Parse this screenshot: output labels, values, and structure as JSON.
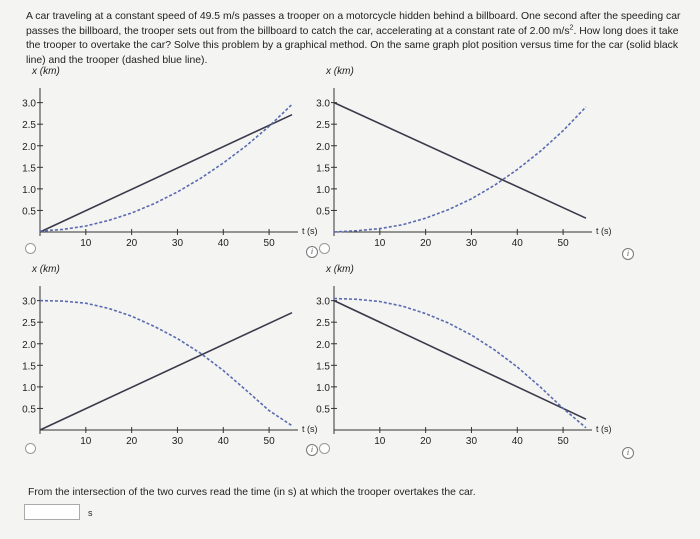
{
  "problem_text_1": "A car traveling at a constant speed of 49.5 m/s passes a trooper on a motorcycle hidden behind a billboard. One second after the speeding car passes the billboard, the trooper sets out from the billboard to catch the car, accelerating at a constant rate of",
  "problem_text_2": "2.00 m/s",
  "problem_text_sup": "2",
  "problem_text_3": ". How long does it take the trooper to overtake the car? Solve this problem by a graphical method. On the same graph plot position versus time for the car (solid black line) and the trooper (dashed blue line).",
  "question": "From the intersection of the two curves read the time (in s) at which the trooper overtakes the car.",
  "answer": {
    "value": "",
    "unit": "s"
  },
  "colors": {
    "car": "#3a3a4a",
    "trooper": "#5a6ab0",
    "axis": "#333"
  },
  "icons": {
    "radio": "radio-button",
    "info": "info-icon"
  },
  "info_glyph": "i",
  "chart_data": [
    {
      "type": "line",
      "option": 1,
      "ylabel": "x (km)",
      "xlabel": "t (s)",
      "xticks": [
        "10",
        "20",
        "30",
        "40",
        "50"
      ],
      "yticks": [
        "0.5",
        "1.0",
        "1.5",
        "2.0",
        "2.5",
        "3.0"
      ],
      "xlim": [
        0,
        55
      ],
      "ylim": [
        0,
        3.2
      ],
      "series": [
        {
          "style": "solid",
          "x": [
            0,
            55
          ],
          "y": [
            0,
            2.72
          ]
        },
        {
          "style": "dashed",
          "x": [
            0,
            5,
            10,
            15,
            20,
            25,
            30,
            35,
            40,
            45,
            50,
            55
          ],
          "y": [
            0.02,
            0.06,
            0.14,
            0.27,
            0.44,
            0.66,
            0.93,
            1.24,
            1.6,
            2.0,
            2.45,
            2.96
          ]
        }
      ]
    },
    {
      "type": "line",
      "option": 2,
      "ylabel": "x (km)",
      "xlabel": "t (s)",
      "xticks": [
        "10",
        "20",
        "30",
        "40",
        "50"
      ],
      "yticks": [
        "0.5",
        "1.0",
        "1.5",
        "2.0",
        "2.5",
        "3.0"
      ],
      "xlim": [
        0,
        55
      ],
      "ylim": [
        0,
        3.2
      ],
      "series": [
        {
          "style": "solid",
          "x": [
            0,
            55
          ],
          "y": [
            3.0,
            0.32
          ]
        },
        {
          "style": "dashed",
          "x": [
            0,
            5,
            10,
            15,
            20,
            25,
            30,
            35,
            40,
            45,
            50,
            55
          ],
          "y": [
            0.0,
            0.03,
            0.08,
            0.17,
            0.32,
            0.52,
            0.77,
            1.08,
            1.45,
            1.87,
            2.35,
            2.9
          ]
        }
      ]
    },
    {
      "type": "line",
      "option": 3,
      "ylabel": "x (km)",
      "xlabel": "t (s)",
      "xticks": [
        "10",
        "20",
        "30",
        "40",
        "50"
      ],
      "yticks": [
        "0.5",
        "1.0",
        "1.5",
        "2.0",
        "2.5",
        "3.0"
      ],
      "xlim": [
        0,
        55
      ],
      "ylim": [
        0,
        3.2
      ],
      "series": [
        {
          "style": "solid",
          "x": [
            0,
            55
          ],
          "y": [
            0,
            2.72
          ]
        },
        {
          "style": "dashed",
          "x": [
            0,
            5,
            10,
            15,
            20,
            25,
            30,
            35,
            40,
            45,
            50,
            55
          ],
          "y": [
            3.0,
            2.99,
            2.94,
            2.82,
            2.64,
            2.4,
            2.12,
            1.78,
            1.38,
            0.92,
            0.45,
            0.1
          ]
        }
      ]
    },
    {
      "type": "line",
      "option": 4,
      "ylabel": "x (km)",
      "xlabel": "t (s)",
      "xticks": [
        "10",
        "20",
        "30",
        "40",
        "50"
      ],
      "yticks": [
        "0.5",
        "1.0",
        "1.5",
        "2.0",
        "2.5",
        "3.0"
      ],
      "xlim": [
        0,
        55
      ],
      "ylim": [
        0,
        3.2
      ],
      "series": [
        {
          "style": "solid",
          "x": [
            0,
            55
          ],
          "y": [
            3.0,
            0.25
          ]
        },
        {
          "style": "dashed",
          "x": [
            0,
            5,
            10,
            15,
            20,
            25,
            30,
            35,
            40,
            45,
            50,
            55
          ],
          "y": [
            3.05,
            3.03,
            2.98,
            2.87,
            2.7,
            2.48,
            2.2,
            1.86,
            1.46,
            1.0,
            0.5,
            0.05
          ]
        }
      ]
    }
  ]
}
